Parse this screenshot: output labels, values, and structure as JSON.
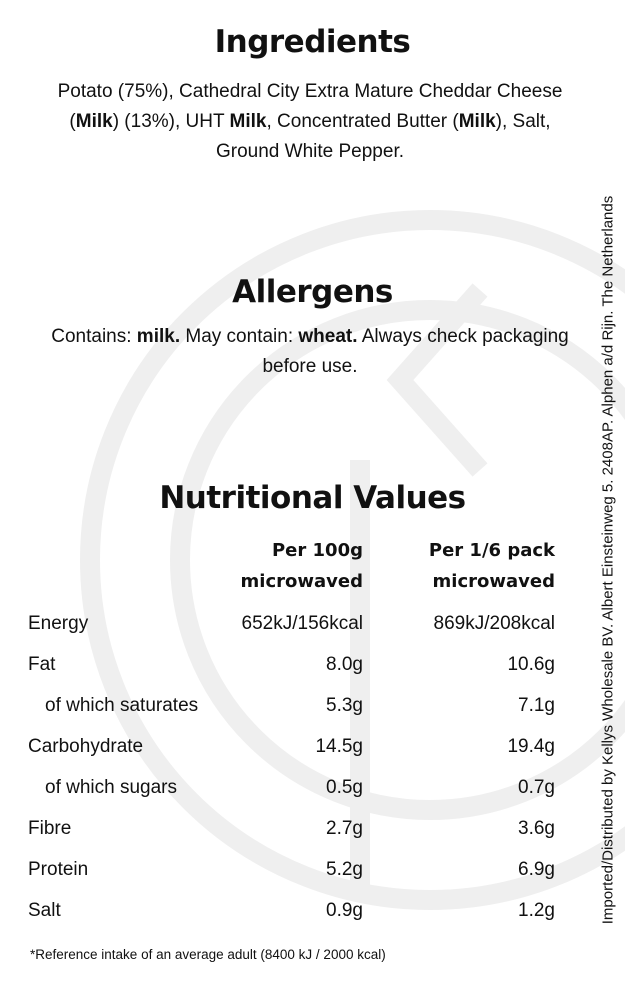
{
  "ingredients": {
    "title": "Ingredients",
    "segments": [
      {
        "text": "Potato (75%), Cathedral City Extra Mature Cheddar Cheese (",
        "bold": false
      },
      {
        "text": "Milk",
        "bold": true
      },
      {
        "text": ") (13%), UHT ",
        "bold": false
      },
      {
        "text": "Milk",
        "bold": true
      },
      {
        "text": ", Concentrated Butter (",
        "bold": false
      },
      {
        "text": "Milk",
        "bold": true
      },
      {
        "text": "), Salt, Ground White Pepper.",
        "bold": false
      }
    ]
  },
  "allergens": {
    "title": "Allergens",
    "segments": [
      {
        "text": "Contains: ",
        "bold": false
      },
      {
        "text": "milk.",
        "bold": true
      },
      {
        "text": " May contain: ",
        "bold": false
      },
      {
        "text": "wheat.",
        "bold": true
      },
      {
        "text": " Always check packaging before use.",
        "bold": false
      }
    ]
  },
  "nutrition": {
    "title": "Nutritional Values",
    "columns": [
      "Per 100g microwaved",
      "Per 1/6 pack microwaved"
    ],
    "rows": [
      {
        "name": "Energy",
        "per_100g": "652kJ/156kcal",
        "per_pack": "869kJ/208kcal",
        "indent": false
      },
      {
        "name": "Fat",
        "per_100g": "8.0g",
        "per_pack": "10.6g",
        "indent": false
      },
      {
        "name": "of which saturates",
        "per_100g": "5.3g",
        "per_pack": "7.1g",
        "indent": true
      },
      {
        "name": "Carbohydrate",
        "per_100g": "14.5g",
        "per_pack": "19.4g",
        "indent": false
      },
      {
        "name": "of which sugars",
        "per_100g": "0.5g",
        "per_pack": "0.7g",
        "indent": true
      },
      {
        "name": "Fibre",
        "per_100g": "2.7g",
        "per_pack": "3.6g",
        "indent": false
      },
      {
        "name": "Protein",
        "per_100g": "5.2g",
        "per_pack": "6.9g",
        "indent": false
      },
      {
        "name": "Salt",
        "per_100g": "0.9g",
        "per_pack": "1.2g",
        "indent": false
      }
    ],
    "footnote": "*Reference intake of an average adult (8400 kJ / 2000 kcal)"
  },
  "side_note": "Imported/Distributed by Kellys Wholesale BV. Albert Einsteinweg 5. 2408AP. Alphen a/d Rijn. The Netherlands"
}
